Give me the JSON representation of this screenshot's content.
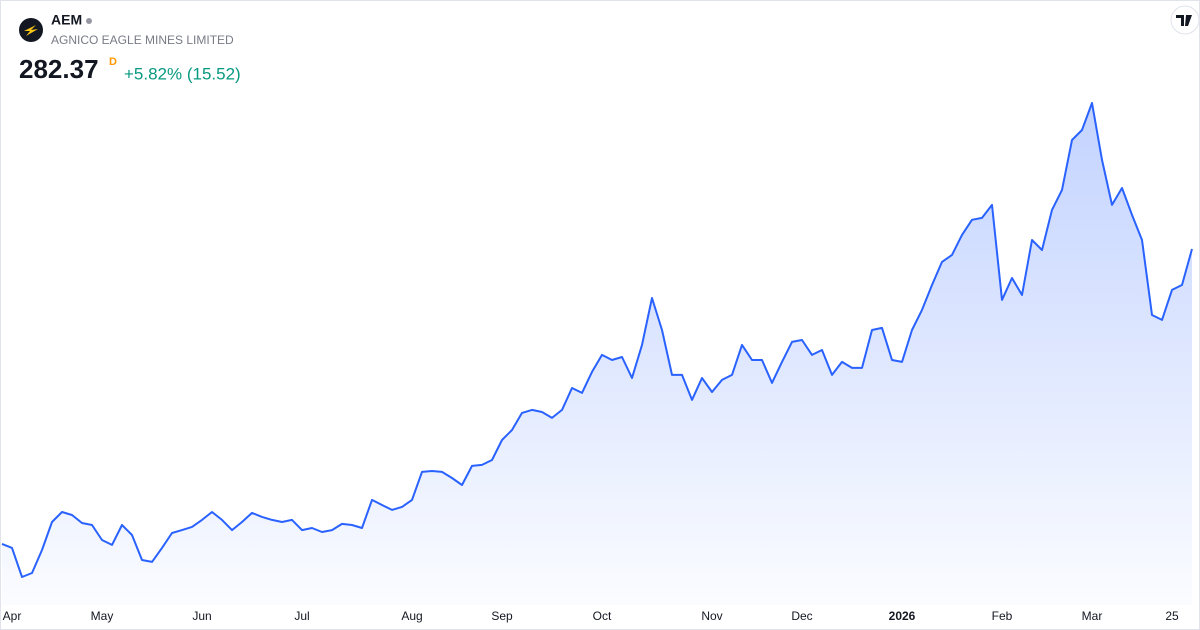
{
  "header": {
    "symbol": "AEM",
    "name": "AGNICO EAGLE MINES LIMITED",
    "price": 282.37,
    "interval": "D",
    "change": "+5.82% (15.52)"
  },
  "chart_data": {
    "type": "area",
    "color": "#2962ff",
    "categories": [
      null,
      "Apr",
      null,
      null,
      null,
      null,
      null,
      null,
      null,
      null,
      "May",
      null,
      null,
      null,
      null,
      null,
      null,
      null,
      null,
      null,
      "Jun",
      null,
      null,
      null,
      null,
      null,
      null,
      null,
      null,
      null,
      "Jul",
      null,
      null,
      null,
      null,
      null,
      null,
      null,
      null,
      null,
      null,
      "Aug",
      null,
      null,
      null,
      null,
      null,
      null,
      null,
      null,
      "Sep",
      null,
      null,
      null,
      null,
      null,
      null,
      null,
      null,
      null,
      "Oct",
      null,
      null,
      null,
      null,
      null,
      null,
      null,
      null,
      null,
      null,
      "Nov",
      null,
      null,
      null,
      null,
      null,
      null,
      null,
      null,
      "Dec",
      null,
      null,
      null,
      null,
      null,
      null,
      null,
      null,
      null,
      "2026",
      null,
      null,
      null,
      null,
      null,
      null,
      null,
      null,
      null,
      "Feb",
      null,
      null,
      null,
      null,
      null,
      null,
      null,
      null,
      "Mar",
      null,
      null,
      null,
      null,
      null,
      null,
      null,
      "25",
      null,
      null
    ],
    "values": [
      114.0,
      111.7,
      95.1,
      97.4,
      110.5,
      126.5,
      132.2,
      130.5,
      125.9,
      124.8,
      116.2,
      113.4,
      124.8,
      119.1,
      104.8,
      103.7,
      111.7,
      120.2,
      121.9,
      123.7,
      127.7,
      132.2,
      127.7,
      121.9,
      126.5,
      131.7,
      129.4,
      127.7,
      126.5,
      127.7,
      121.9,
      123.1,
      120.8,
      121.9,
      125.4,
      124.8,
      123.1,
      139.1,
      136.2,
      133.4,
      135.1,
      139.1,
      155.1,
      155.6,
      155.1,
      151.6,
      147.6,
      158.5,
      159.1,
      161.9,
      173.3,
      179.0,
      188.8,
      190.5,
      189.3,
      185.9,
      190.5,
      203.0,
      200.2,
      212.2,
      221.9,
      219.0,
      220.7,
      208.7,
      227.6,
      254.4,
      236.1,
      210.5,
      210.5,
      196.2,
      208.7,
      200.7,
      207.6,
      210.5,
      227.6,
      219.0,
      219.0,
      205.9,
      217.9,
      229.3,
      230.4,
      221.9,
      224.7,
      210.5,
      217.9,
      214.5,
      214.5,
      236.1,
      237.3,
      219.0,
      217.9,
      236.1,
      247.6,
      261.8,
      275.0,
      279.0,
      290.4,
      299.0,
      300.1,
      307.5,
      253.3,
      265.8,
      256.1,
      287.5,
      281.8,
      304.7,
      316.1,
      344.6,
      350.3,
      365.7,
      333.2,
      307.5,
      317.2,
      301.8,
      287.5,
      244.7,
      241.9,
      259.0,
      261.8,
      282.37
    ]
  }
}
